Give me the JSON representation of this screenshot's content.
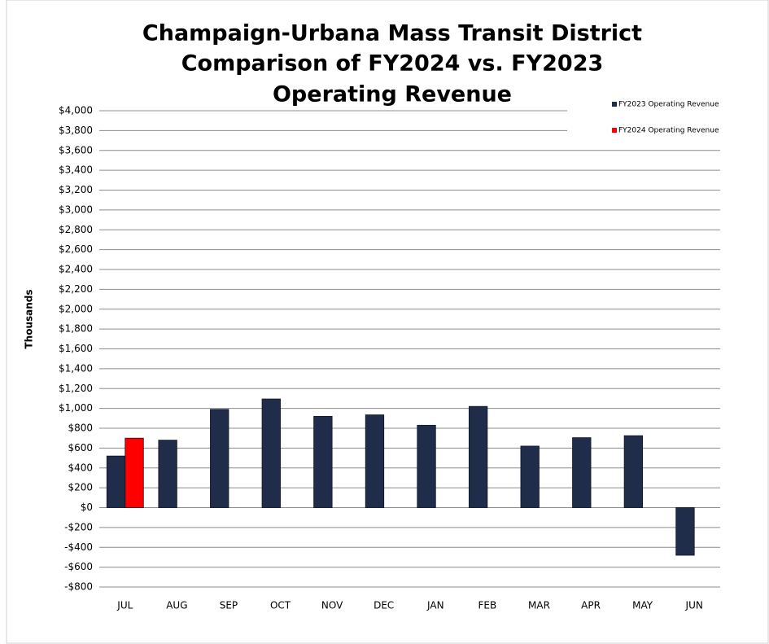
{
  "chart_data": {
    "type": "bar",
    "title": [
      "Champaign-Urbana Mass Transit District",
      "Comparison of FY2024 vs. FY2023",
      "Operating Revenue"
    ],
    "y_label": "Thousands",
    "categories": [
      "JUL",
      "AUG",
      "SEP",
      "OCT",
      "NOV",
      "DEC",
      "JAN",
      "FEB",
      "MAR",
      "APR",
      "MAY",
      "JUN"
    ],
    "series": [
      {
        "name": "FY2023 Operating Revenue",
        "color": "#1f2d4a",
        "values": [
          520,
          680,
          990,
          1095,
          920,
          935,
          830,
          1020,
          620,
          705,
          725,
          -480
        ]
      },
      {
        "name": "FY2024 Operating Revenue",
        "color": "#ff0000",
        "values": [
          700,
          null,
          null,
          null,
          null,
          null,
          null,
          null,
          null,
          null,
          null,
          null
        ]
      }
    ],
    "ylim": [
      -800,
      4000
    ],
    "yticks": [
      {
        "value": -800,
        "label": "-$800"
      },
      {
        "value": -600,
        "label": "-$600"
      },
      {
        "value": -400,
        "label": "-$400"
      },
      {
        "value": -200,
        "label": "-$200"
      },
      {
        "value": 0,
        "label": "$0"
      },
      {
        "value": 200,
        "label": "$200"
      },
      {
        "value": 400,
        "label": "$400"
      },
      {
        "value": 600,
        "label": "$600"
      },
      {
        "value": 800,
        "label": "$800"
      },
      {
        "value": 1000,
        "label": "$1,000"
      },
      {
        "value": 1200,
        "label": "$1,200"
      },
      {
        "value": 1400,
        "label": "$1,400"
      },
      {
        "value": 1600,
        "label": "$1,600"
      },
      {
        "value": 1800,
        "label": "$1,800"
      },
      {
        "value": 2000,
        "label": "$2,000"
      },
      {
        "value": 2200,
        "label": "$2,200"
      },
      {
        "value": 2400,
        "label": "$2,400"
      },
      {
        "value": 2600,
        "label": "$2,600"
      },
      {
        "value": 2800,
        "label": "$2,800"
      },
      {
        "value": 3000,
        "label": "$3,000"
      },
      {
        "value": 3200,
        "label": "$3,200"
      },
      {
        "value": 3400,
        "label": "$3,400"
      },
      {
        "value": 3600,
        "label": "$3,600"
      },
      {
        "value": 3800,
        "label": "$3,800"
      },
      {
        "value": 4000,
        "label": "$4,000"
      }
    ],
    "grid": true,
    "legend": "top-right"
  }
}
